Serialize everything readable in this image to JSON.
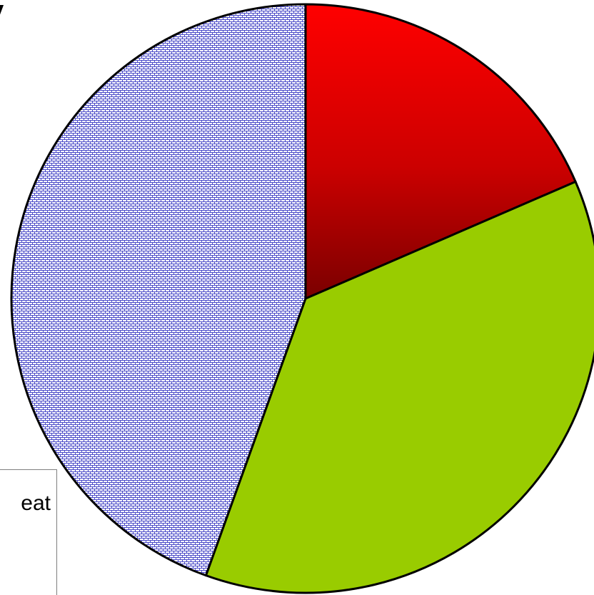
{
  "chart_data": {
    "type": "pie",
    "title": "ergy",
    "series": [
      {
        "name": "",
        "value": 18.5,
        "color": "#e00000",
        "fill": "red-gradient"
      },
      {
        "name": "",
        "value": 37.0,
        "color": "#99cc00",
        "fill": "solid"
      },
      {
        "name": "",
        "value": 44.5,
        "color": "#6666cc",
        "fill": "blue-brick-pattern"
      }
    ],
    "start_angle_deg": 0,
    "direction": "clockwise",
    "legend": {
      "placement": "bottom-left",
      "visible_entry_text": "eat"
    }
  }
}
